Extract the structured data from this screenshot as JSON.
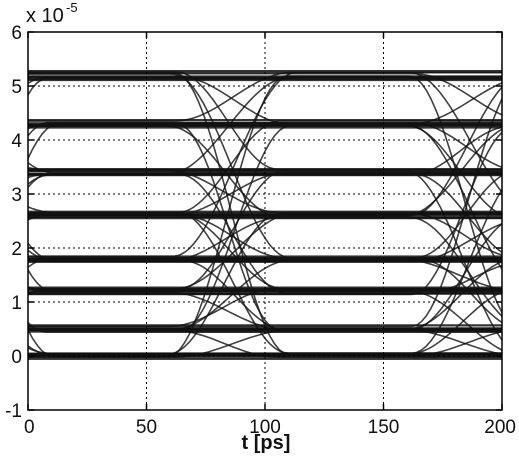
{
  "chart_data": {
    "type": "line",
    "title": "",
    "xlabel": "t [ps]",
    "ylabel": "",
    "y_multiplier": {
      "base": "x 10",
      "exponent": "-5"
    },
    "xlim": [
      0,
      200
    ],
    "ylim": [
      -1,
      6
    ],
    "xticks": [
      0,
      50,
      100,
      150,
      200
    ],
    "xtick_labels": [
      "0",
      "50",
      "100",
      "150",
      "200"
    ],
    "yticks": [
      -1,
      0,
      1,
      2,
      3,
      4,
      5,
      6
    ],
    "ytick_labels": [
      "-1",
      "0",
      "1",
      "2",
      "3",
      "4",
      "5",
      "6"
    ],
    "grid": true,
    "grid_style": "dotted",
    "legend": "none",
    "series_color": "#111111",
    "description_values": {
      "bit_period_ps": 100,
      "eye_centers_ps": [
        35,
        135
      ],
      "crossing_times_ps": [
        85,
        185
      ],
      "levels": [
        0,
        0.5,
        1.2,
        1.8,
        2.6,
        3.4,
        4.3,
        5.2
      ],
      "eye_openings": [
        {
          "t": 35,
          "y_low": 0.2,
          "y_high": 1.5
        },
        {
          "t": 35,
          "y_low": 2.1,
          "y_high": 3.0
        },
        {
          "t": 35,
          "y_low": 3.8,
          "y_high": 4.7
        },
        {
          "t": 135,
          "y_low": 0.2,
          "y_high": 1.5
        },
        {
          "t": 135,
          "y_low": 2.1,
          "y_high": 3.0
        },
        {
          "t": 135,
          "y_low": 3.8,
          "y_high": 4.7
        }
      ]
    }
  }
}
